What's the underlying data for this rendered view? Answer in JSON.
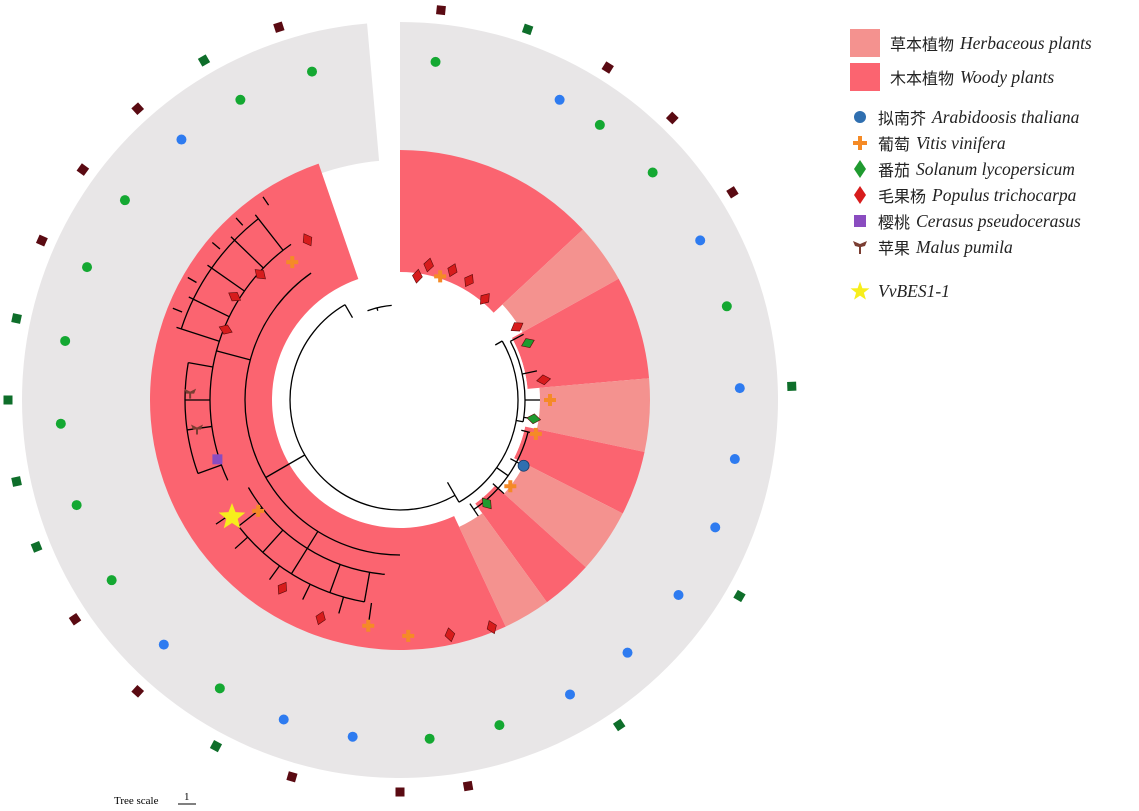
{
  "legend": {
    "categories": [
      {
        "cn": "草本植物",
        "en": "Herbaceous plants",
        "color": "#f4928f"
      },
      {
        "cn": "木本植物",
        "en": "Woody plants",
        "color": "#fb6470"
      }
    ],
    "species": [
      {
        "cn": "拟南芥",
        "en": "Arabidoosis thaliana",
        "icon": "circle-icon",
        "color": "#2f6fb0"
      },
      {
        "cn": "葡萄",
        "en": "Vitis vinifera",
        "icon": "cross-icon",
        "color": "#f58a26"
      },
      {
        "cn": "番茄",
        "en": "Solanum lycopersicum",
        "icon": "diamond-icon",
        "color": "#1f9a2f"
      },
      {
        "cn": "毛果杨",
        "en": "Populus trichocarpa",
        "icon": "diamond-icon",
        "color": "#d71c1c"
      },
      {
        "cn": "樱桃",
        "en": "Cerasus pseudocerasus",
        "icon": "square-icon",
        "color": "#8a4cc0"
      },
      {
        "cn": "苹果",
        "en": "Malus pumila",
        "icon": "trefoil-icon",
        "color": "#7a3d32"
      }
    ],
    "highlight": {
      "label": "VvBES1-1",
      "icon": "star-icon",
      "color": "#f7ee1c"
    }
  },
  "tree_scale": {
    "label": "Tree scale",
    "value": "1"
  },
  "colors": {
    "ring": "#e8e6e7",
    "woody": "#fb6470",
    "herbaceous": "#f4928f",
    "outer_green_dot": "#14a832",
    "outer_blue_dot": "#2e7bf0",
    "outer_green_square": "#0e6e2a",
    "outer_dark_square": "#5a0a12"
  }
}
